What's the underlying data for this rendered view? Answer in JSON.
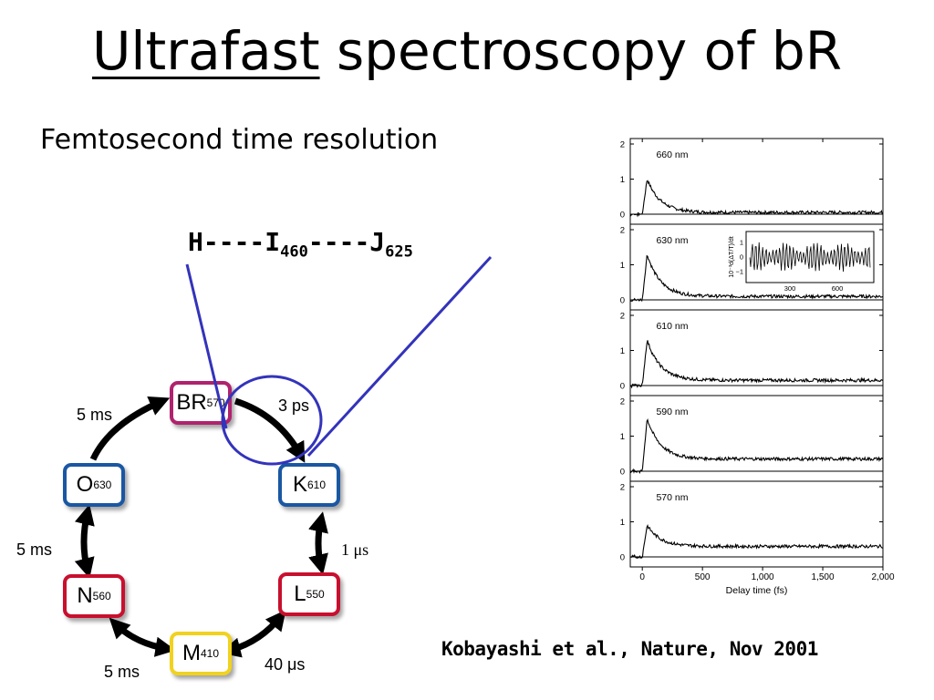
{
  "slide": {
    "title_underlined": "Ultrafast",
    "title_rest": "spectroscopy of bR",
    "subtitle": "Femtosecond time resolution",
    "hij": {
      "part1": "H----I",
      "sub1": "460",
      "part2": "----J",
      "sub2": "625"
    },
    "citation": "Kobayashi et al., Nature, Nov 2001"
  },
  "cycle": {
    "states": [
      {
        "main": "BR",
        "sub": "570",
        "color": "#b0226e"
      },
      {
        "main": "K",
        "sub": "610",
        "color": "#1a57a3"
      },
      {
        "main": "L",
        "sub": "550",
        "color": "#c8102e"
      },
      {
        "main": "M",
        "sub": "410",
        "color": "#f1d21f"
      },
      {
        "main": "N",
        "sub": "560",
        "color": "#c8102e"
      },
      {
        "main": "O",
        "sub": "630",
        "color": "#1a57a3"
      }
    ],
    "times": [
      "5 ms",
      "3 ps",
      "5 ms",
      "1 μs",
      "5 ms",
      "40 μs"
    ],
    "highlight_color": "#3333bb"
  },
  "chart_data": {
    "type": "line",
    "xlabel": "Delay time (fs)",
    "xlim": [
      -100,
      2000
    ],
    "x_ticks": [
      "0",
      "500",
      "1,000",
      "1,500",
      "2,000"
    ],
    "y_ticks": [
      "0",
      "1",
      "2"
    ],
    "panels": [
      {
        "label": "660 nm",
        "peak": 1.0,
        "tail": 0.05
      },
      {
        "label": "630 nm",
        "peak": 1.3,
        "tail": 0.1
      },
      {
        "label": "610 nm",
        "peak": 1.3,
        "tail": 0.15
      },
      {
        "label": "590 nm",
        "peak": 1.5,
        "tail": 0.35
      },
      {
        "label": "570 nm",
        "peak": 0.9,
        "tail": 0.3
      }
    ],
    "inset": {
      "ylabel": "10⁻³d(ΔT/T)/dt",
      "y_ticks": [
        "1",
        "0",
        "−1"
      ],
      "x_ticks": [
        "300",
        "600"
      ]
    }
  }
}
